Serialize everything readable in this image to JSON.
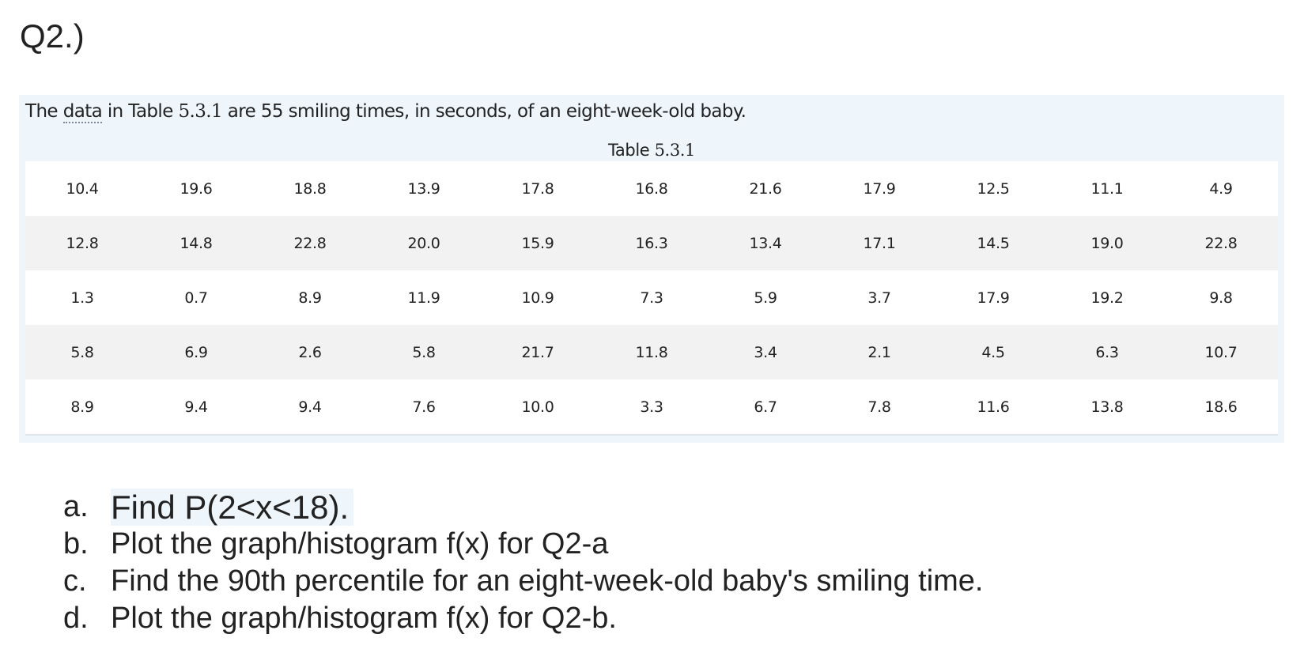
{
  "heading": "Q2.)",
  "intro": {
    "prefix": "The ",
    "data_word": "data",
    "middle": " in Table ",
    "table_ref": "5.3.1",
    "suffix": " are 55 smiling times, in seconds, of an eight-week-old baby."
  },
  "caption": {
    "label": "Table ",
    "number": "5.3.1"
  },
  "table": {
    "rows": [
      [
        "10.4",
        "19.6",
        "18.8",
        "13.9",
        "17.8",
        "16.8",
        "21.6",
        "17.9",
        "12.5",
        "11.1",
        "4.9"
      ],
      [
        "12.8",
        "14.8",
        "22.8",
        "20.0",
        "15.9",
        "16.3",
        "13.4",
        "17.1",
        "14.5",
        "19.0",
        "22.8"
      ],
      [
        "1.3",
        "0.7",
        "8.9",
        "11.9",
        "10.9",
        "7.3",
        "5.9",
        "3.7",
        "17.9",
        "19.2",
        "9.8"
      ],
      [
        "5.8",
        "6.9",
        "2.6",
        "5.8",
        "21.7",
        "11.8",
        "3.4",
        "2.1",
        "4.5",
        "6.3",
        "10.7"
      ],
      [
        "8.9",
        "9.4",
        "9.4",
        "7.6",
        "10.0",
        "3.3",
        "6.7",
        "7.8",
        "11.6",
        "13.8",
        "18.6"
      ]
    ]
  },
  "questions": [
    {
      "marker": "a.",
      "text": "Find P(2<x<18)."
    },
    {
      "marker": "b.",
      "text": "Plot the graph/histogram f(x) for Q2-a"
    },
    {
      "marker": "c.",
      "text": "Find the 90th percentile for an eight-week-old baby's smiling time."
    },
    {
      "marker": "d.",
      "text": "Plot the graph/histogram f(x) for Q2-b."
    }
  ]
}
